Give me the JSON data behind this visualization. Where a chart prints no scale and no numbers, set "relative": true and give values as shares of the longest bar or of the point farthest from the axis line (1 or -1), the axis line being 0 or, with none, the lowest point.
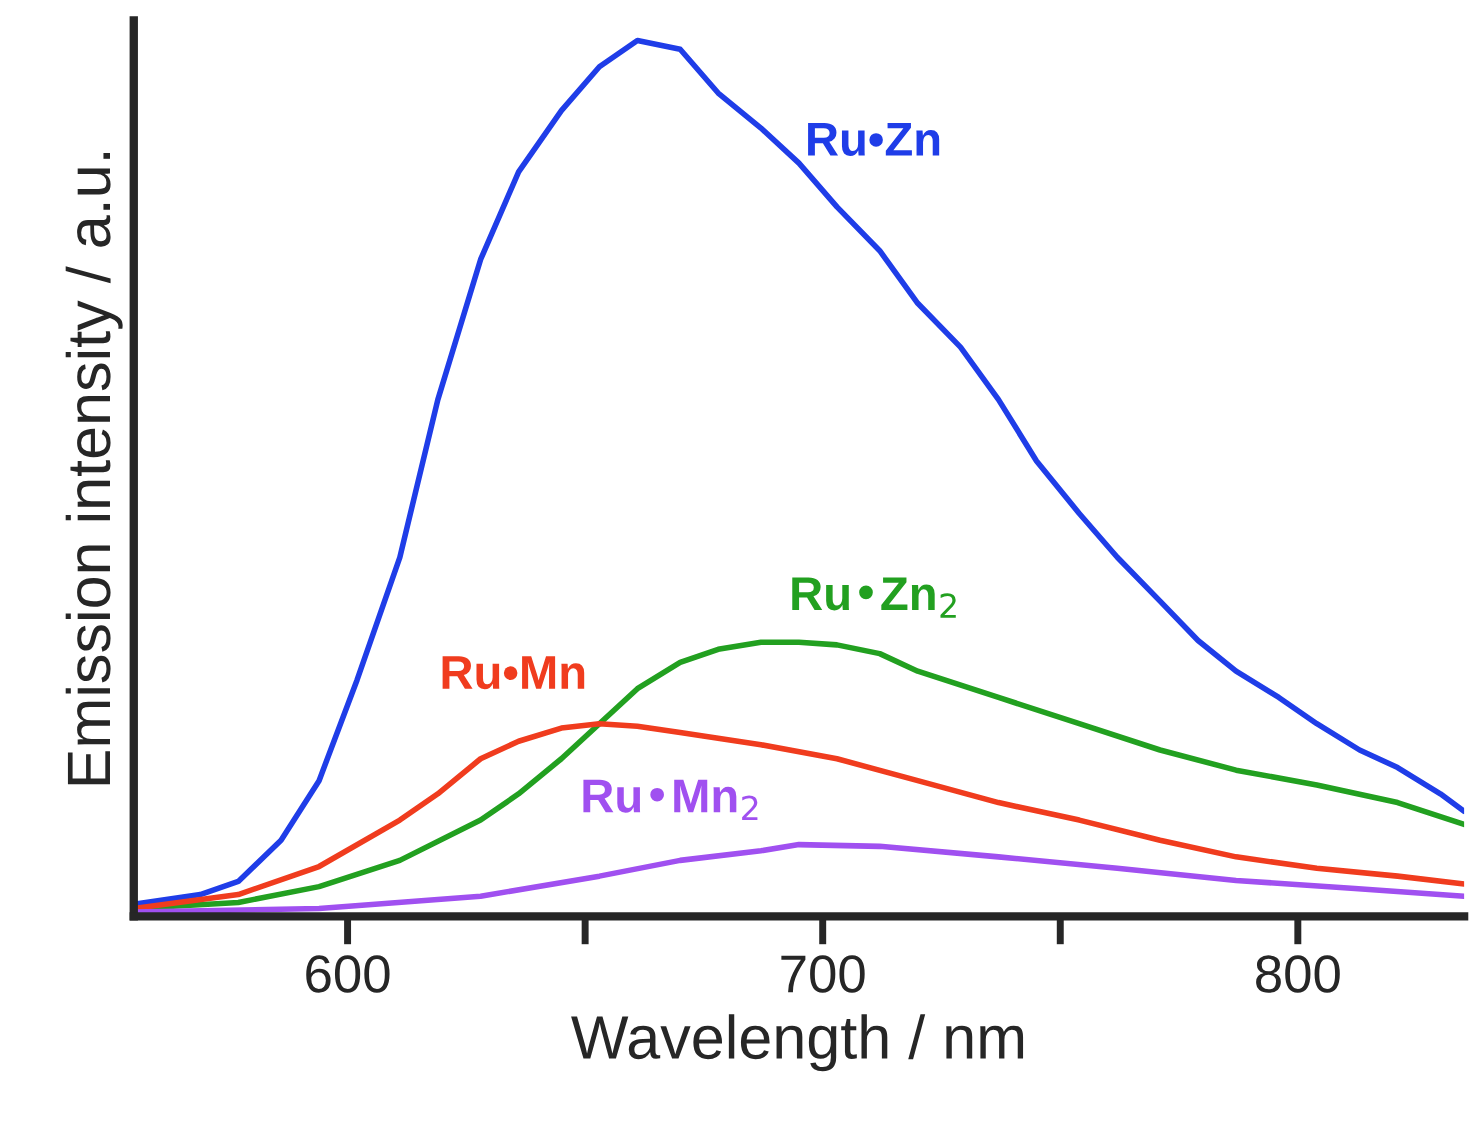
{
  "chart_data": {
    "type": "line",
    "relative": true,
    "xlabel": "Wavelength / nm",
    "ylabel": "Emission intensity / a.u.",
    "xlim": [
      555,
      835
    ],
    "xticks": [
      600,
      {
        "value": 650,
        "label": null
      },
      700,
      {
        "value": 750,
        "label": null
      },
      800
    ],
    "tick_labels": "x",
    "grid": false,
    "legend": false,
    "marker": "none",
    "line_style": "solid",
    "series": [
      {
        "name": "Ru•Zn",
        "color": "#1f3de8",
        "x": [
          555,
          569,
          577,
          586,
          594,
          602,
          611,
          619,
          628,
          636,
          645,
          653,
          661,
          670,
          678,
          687,
          695,
          703,
          712,
          720,
          729,
          737,
          745,
          754,
          762,
          771,
          779,
          787,
          796,
          804,
          813,
          821,
          830,
          835
        ],
        "values": [
          0.014,
          0.025,
          0.04,
          0.087,
          0.155,
          0.27,
          0.41,
          0.59,
          0.75,
          0.85,
          0.92,
          0.97,
          1.0,
          0.99,
          0.94,
          0.9,
          0.86,
          0.81,
          0.76,
          0.7,
          0.65,
          0.59,
          0.52,
          0.46,
          0.41,
          0.36,
          0.315,
          0.28,
          0.25,
          0.22,
          0.19,
          0.17,
          0.14,
          0.12
        ]
      },
      {
        "name": "Ru•Zn$_{2}$",
        "color": "#22a020",
        "x": [
          555,
          577,
          594,
          611,
          628,
          636,
          645,
          653,
          661,
          670,
          678,
          687,
          695,
          703,
          712,
          720,
          737,
          754,
          771,
          787,
          804,
          821,
          835
        ],
        "values": [
          0.009,
          0.016,
          0.034,
          0.064,
          0.11,
          0.14,
          0.18,
          0.22,
          0.26,
          0.29,
          0.305,
          0.313,
          0.313,
          0.31,
          0.3,
          0.28,
          0.25,
          0.22,
          0.19,
          0.167,
          0.15,
          0.13,
          0.105
        ]
      },
      {
        "name": "Ru•Mn",
        "color": "#f03c1e",
        "x": [
          555,
          577,
          594,
          611,
          619,
          628,
          636,
          645,
          653,
          661,
          670,
          687,
          703,
          720,
          737,
          754,
          771,
          787,
          804,
          821,
          835
        ],
        "values": [
          0.009,
          0.025,
          0.057,
          0.11,
          0.14,
          0.18,
          0.2,
          0.215,
          0.22,
          0.217,
          0.21,
          0.196,
          0.18,
          0.155,
          0.13,
          0.11,
          0.087,
          0.068,
          0.055,
          0.046,
          0.037
        ]
      },
      {
        "name": "Ru•Mn$_{2}$",
        "color": "#a050f0",
        "x": [
          555,
          594,
          628,
          653,
          670,
          687,
          695,
          712,
          737,
          762,
          787,
          812,
          835
        ],
        "values": [
          0.005,
          0.009,
          0.023,
          0.046,
          0.064,
          0.075,
          0.082,
          0.08,
          0.068,
          0.055,
          0.041,
          0.032,
          0.023
        ]
      }
    ]
  }
}
